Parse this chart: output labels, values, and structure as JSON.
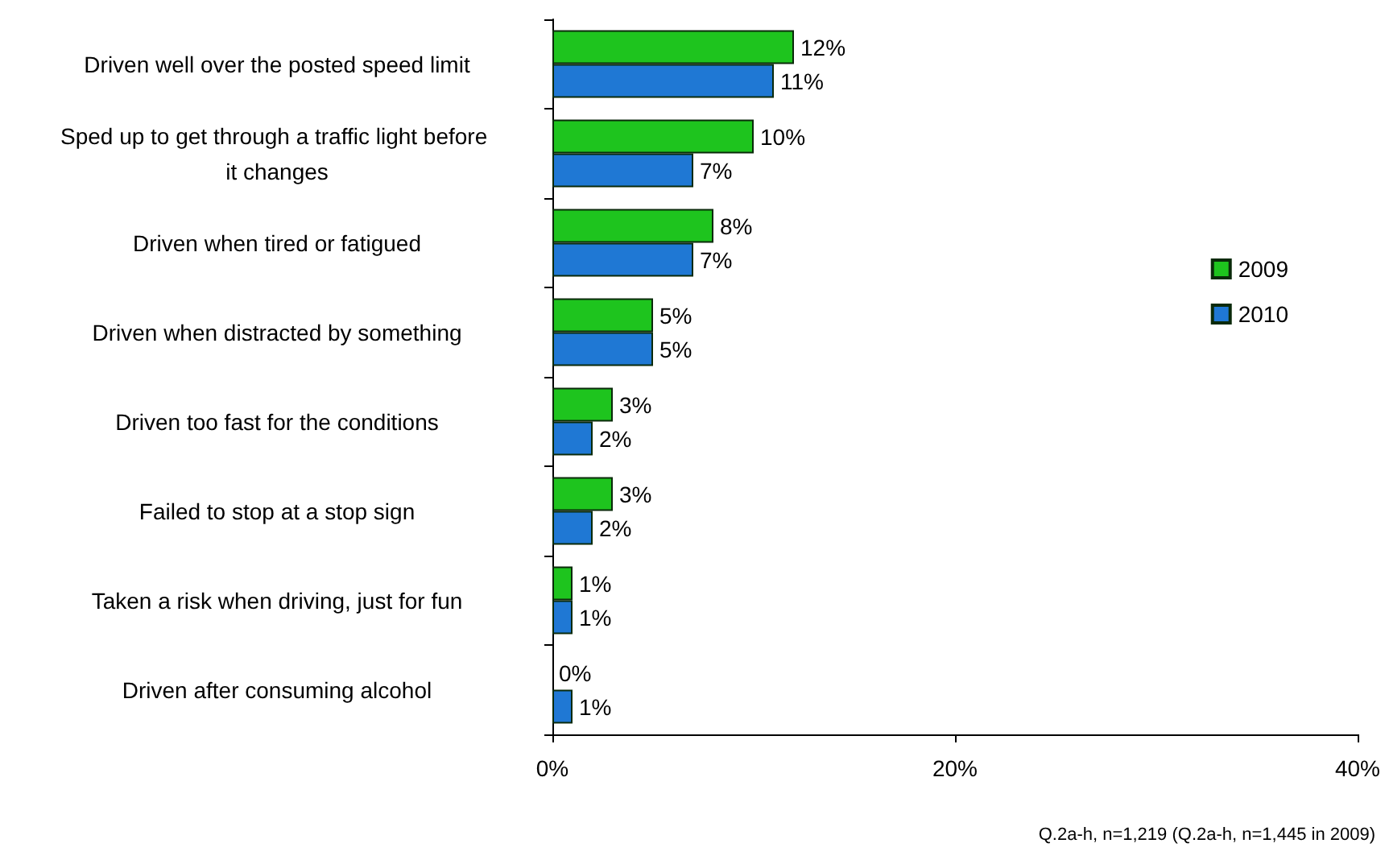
{
  "chart_data": {
    "type": "bar",
    "orientation": "horizontal",
    "categories": [
      "Driven well over the posted speed limit",
      "Sped up to get through a traffic light before it changes",
      "Driven when tired or fatigued",
      "Driven when distracted by something",
      "Driven too fast for the conditions",
      "Failed to stop at a stop sign",
      "Taken a risk when driving, just for fun",
      "Driven after consuming alcohol"
    ],
    "series": [
      {
        "name": "2009",
        "color": "#1ec41e",
        "values": [
          12,
          10,
          8,
          5,
          3,
          3,
          1,
          0
        ],
        "value_labels": [
          "12%",
          "10%",
          "8%",
          "5%",
          "3%",
          "3%",
          "1%",
          "0%"
        ]
      },
      {
        "name": "2010",
        "color": "#1f78d4",
        "values": [
          11,
          7,
          7,
          5,
          2,
          2,
          1,
          1
        ],
        "value_labels": [
          "11%",
          "7%",
          "7%",
          "5%",
          "2%",
          "2%",
          "1%",
          "1%"
        ]
      }
    ],
    "xlim": [
      0,
      40
    ],
    "xticks": [
      {
        "value": 0,
        "label": "0%"
      },
      {
        "value": 20,
        "label": "20%"
      },
      {
        "value": 40,
        "label": "40%"
      }
    ],
    "grid": false,
    "legend": "right",
    "annotations": [
      "Q.2a-h, n=1,219 (Q.2a-h, n=1,445 in 2009)"
    ]
  }
}
